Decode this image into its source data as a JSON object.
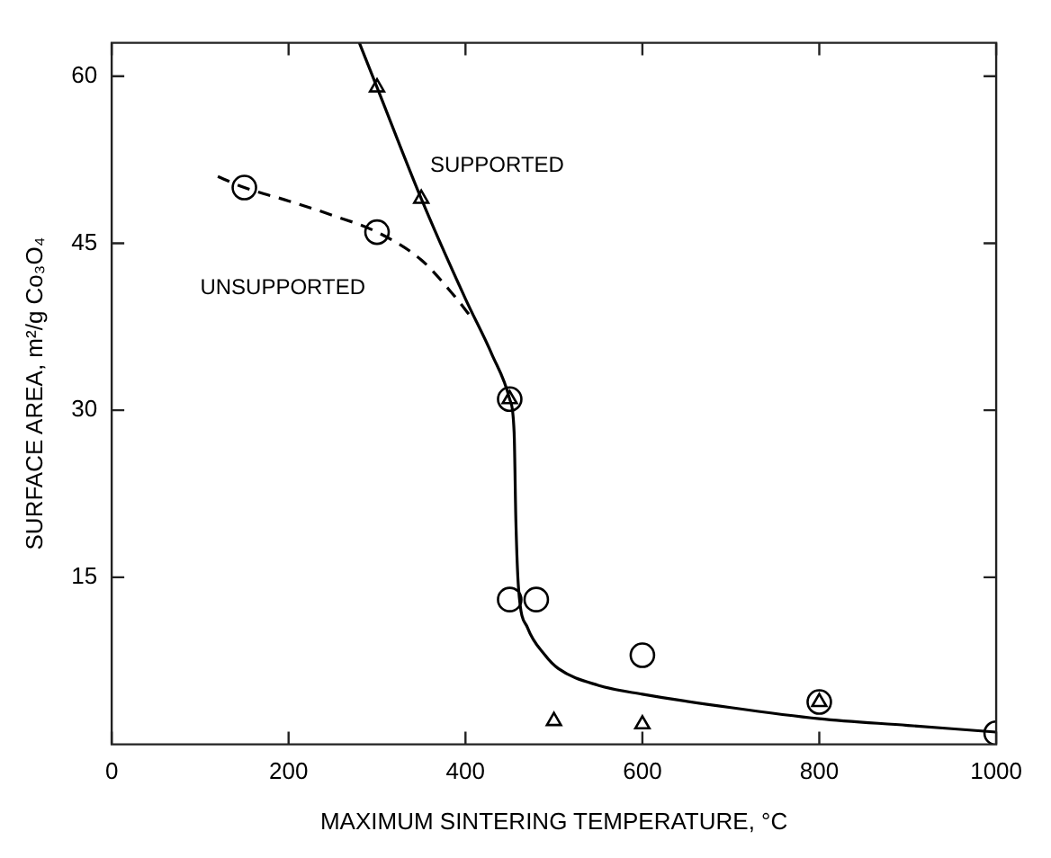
{
  "chart_data": {
    "type": "line",
    "xlabel": "MAXIMUM SINTERING TEMPERATURE, °C",
    "ylabel": "SURFACE AREA, m²/g Co₃O₄",
    "xlim": [
      0,
      1000
    ],
    "xticks": [
      0,
      200,
      400,
      600,
      800,
      1000
    ],
    "ylim": [
      0,
      63
    ],
    "yticks": [
      15,
      30,
      45,
      60
    ],
    "series": [
      {
        "name": "SUPPORTED",
        "type": "line",
        "color": "#000000",
        "line_style": "solid",
        "marker": "none",
        "x": [
          280,
          300,
          350,
          400,
          430,
          450,
          455,
          457,
          460,
          470,
          490,
          505,
          550,
          600,
          700,
          800,
          900,
          1000
        ],
        "values": [
          63,
          59,
          49,
          40,
          35,
          31,
          28,
          20,
          14,
          10.5,
          8,
          6.8,
          5.3,
          4.5,
          3.3,
          2.3,
          1.7,
          1.1
        ]
      },
      {
        "name": "UNSUPPORTED",
        "type": "line",
        "color": "#000000",
        "line_style": "dashed",
        "marker": "none",
        "x": [
          120,
          150,
          200,
          250,
          300,
          350,
          385,
          410
        ],
        "values": [
          51,
          50,
          48.8,
          47.5,
          46,
          43.5,
          40.5,
          38
        ]
      },
      {
        "type": "scatter",
        "color": "#000000",
        "marker": "circle",
        "x": [
          150,
          300,
          450,
          450,
          480,
          600,
          800,
          1000
        ],
        "values": [
          50,
          46,
          31,
          13,
          13,
          8,
          3.8,
          1
        ]
      },
      {
        "type": "scatter",
        "color": "#000000",
        "marker": "triangle",
        "x": [
          300,
          350,
          450,
          500,
          600,
          800
        ],
        "values": [
          59,
          49,
          31,
          2.1,
          1.8,
          3.8
        ]
      }
    ]
  }
}
